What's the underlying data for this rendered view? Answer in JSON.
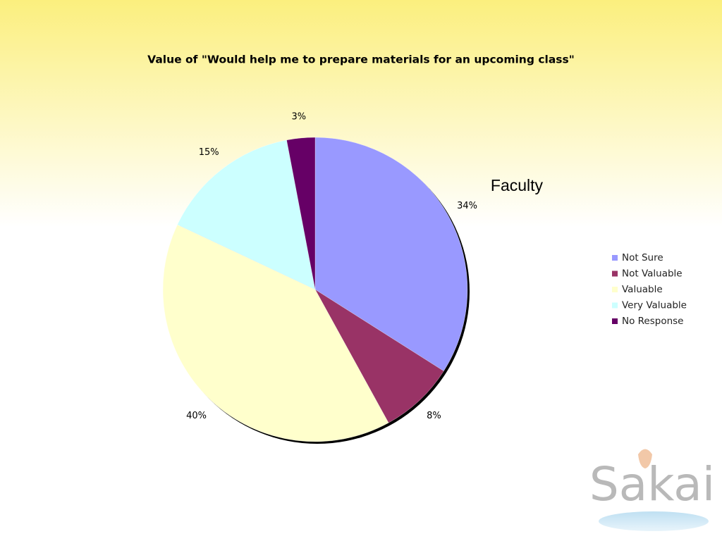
{
  "chart_data": {
    "type": "pie",
    "title": "Value of \"Would help me to prepare materials for an upcoming class\"",
    "annotation": "Faculty",
    "categories": [
      "Not Sure",
      "Not Valuable",
      "Valuable",
      "Very Valuable",
      "No Response"
    ],
    "values": [
      34,
      8,
      40,
      15,
      3
    ],
    "value_labels": [
      "34%",
      "8%",
      "40%",
      "15%",
      "3%"
    ],
    "colors": [
      "#9999ff",
      "#993366",
      "#ffffcc",
      "#ccffff",
      "#660066"
    ],
    "legend": "right"
  },
  "logo": "Sakai"
}
